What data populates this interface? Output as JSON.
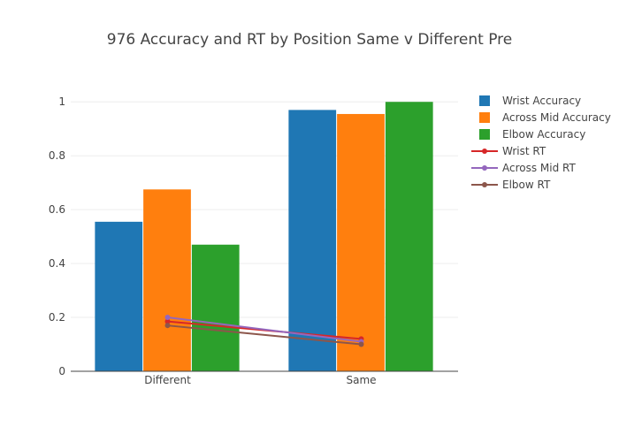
{
  "chart_data": {
    "type": "bar",
    "title": "976 Accuracy and RT by Position Same v Different Pre",
    "categories": [
      "Different",
      "Same"
    ],
    "ylim": [
      0,
      1.0
    ],
    "yticks": [
      0,
      0.2,
      0.4,
      0.6,
      0.8,
      1
    ],
    "ytick_labels": [
      "0",
      "0.2",
      "0.4",
      "0.6",
      "0.8",
      "1"
    ],
    "grid": true,
    "legend_position": "right",
    "bar_series": [
      {
        "name": "Wrist Accuracy",
        "values": [
          0.555,
          0.97
        ],
        "color": "#1f77b4"
      },
      {
        "name": "Across Mid Accuracy",
        "values": [
          0.675,
          0.955
        ],
        "color": "#ff7f0e"
      },
      {
        "name": "Elbow Accuracy",
        "values": [
          0.47,
          1.0
        ],
        "color": "#2ca02c"
      }
    ],
    "line_series": [
      {
        "name": "Wrist RT",
        "values": [
          0.185,
          0.12
        ],
        "color": "#d62728"
      },
      {
        "name": "Across Mid RT",
        "values": [
          0.2,
          0.11
        ],
        "color": "#9467bd"
      },
      {
        "name": "Elbow RT",
        "values": [
          0.17,
          0.1
        ],
        "color": "#8c564b"
      }
    ]
  }
}
